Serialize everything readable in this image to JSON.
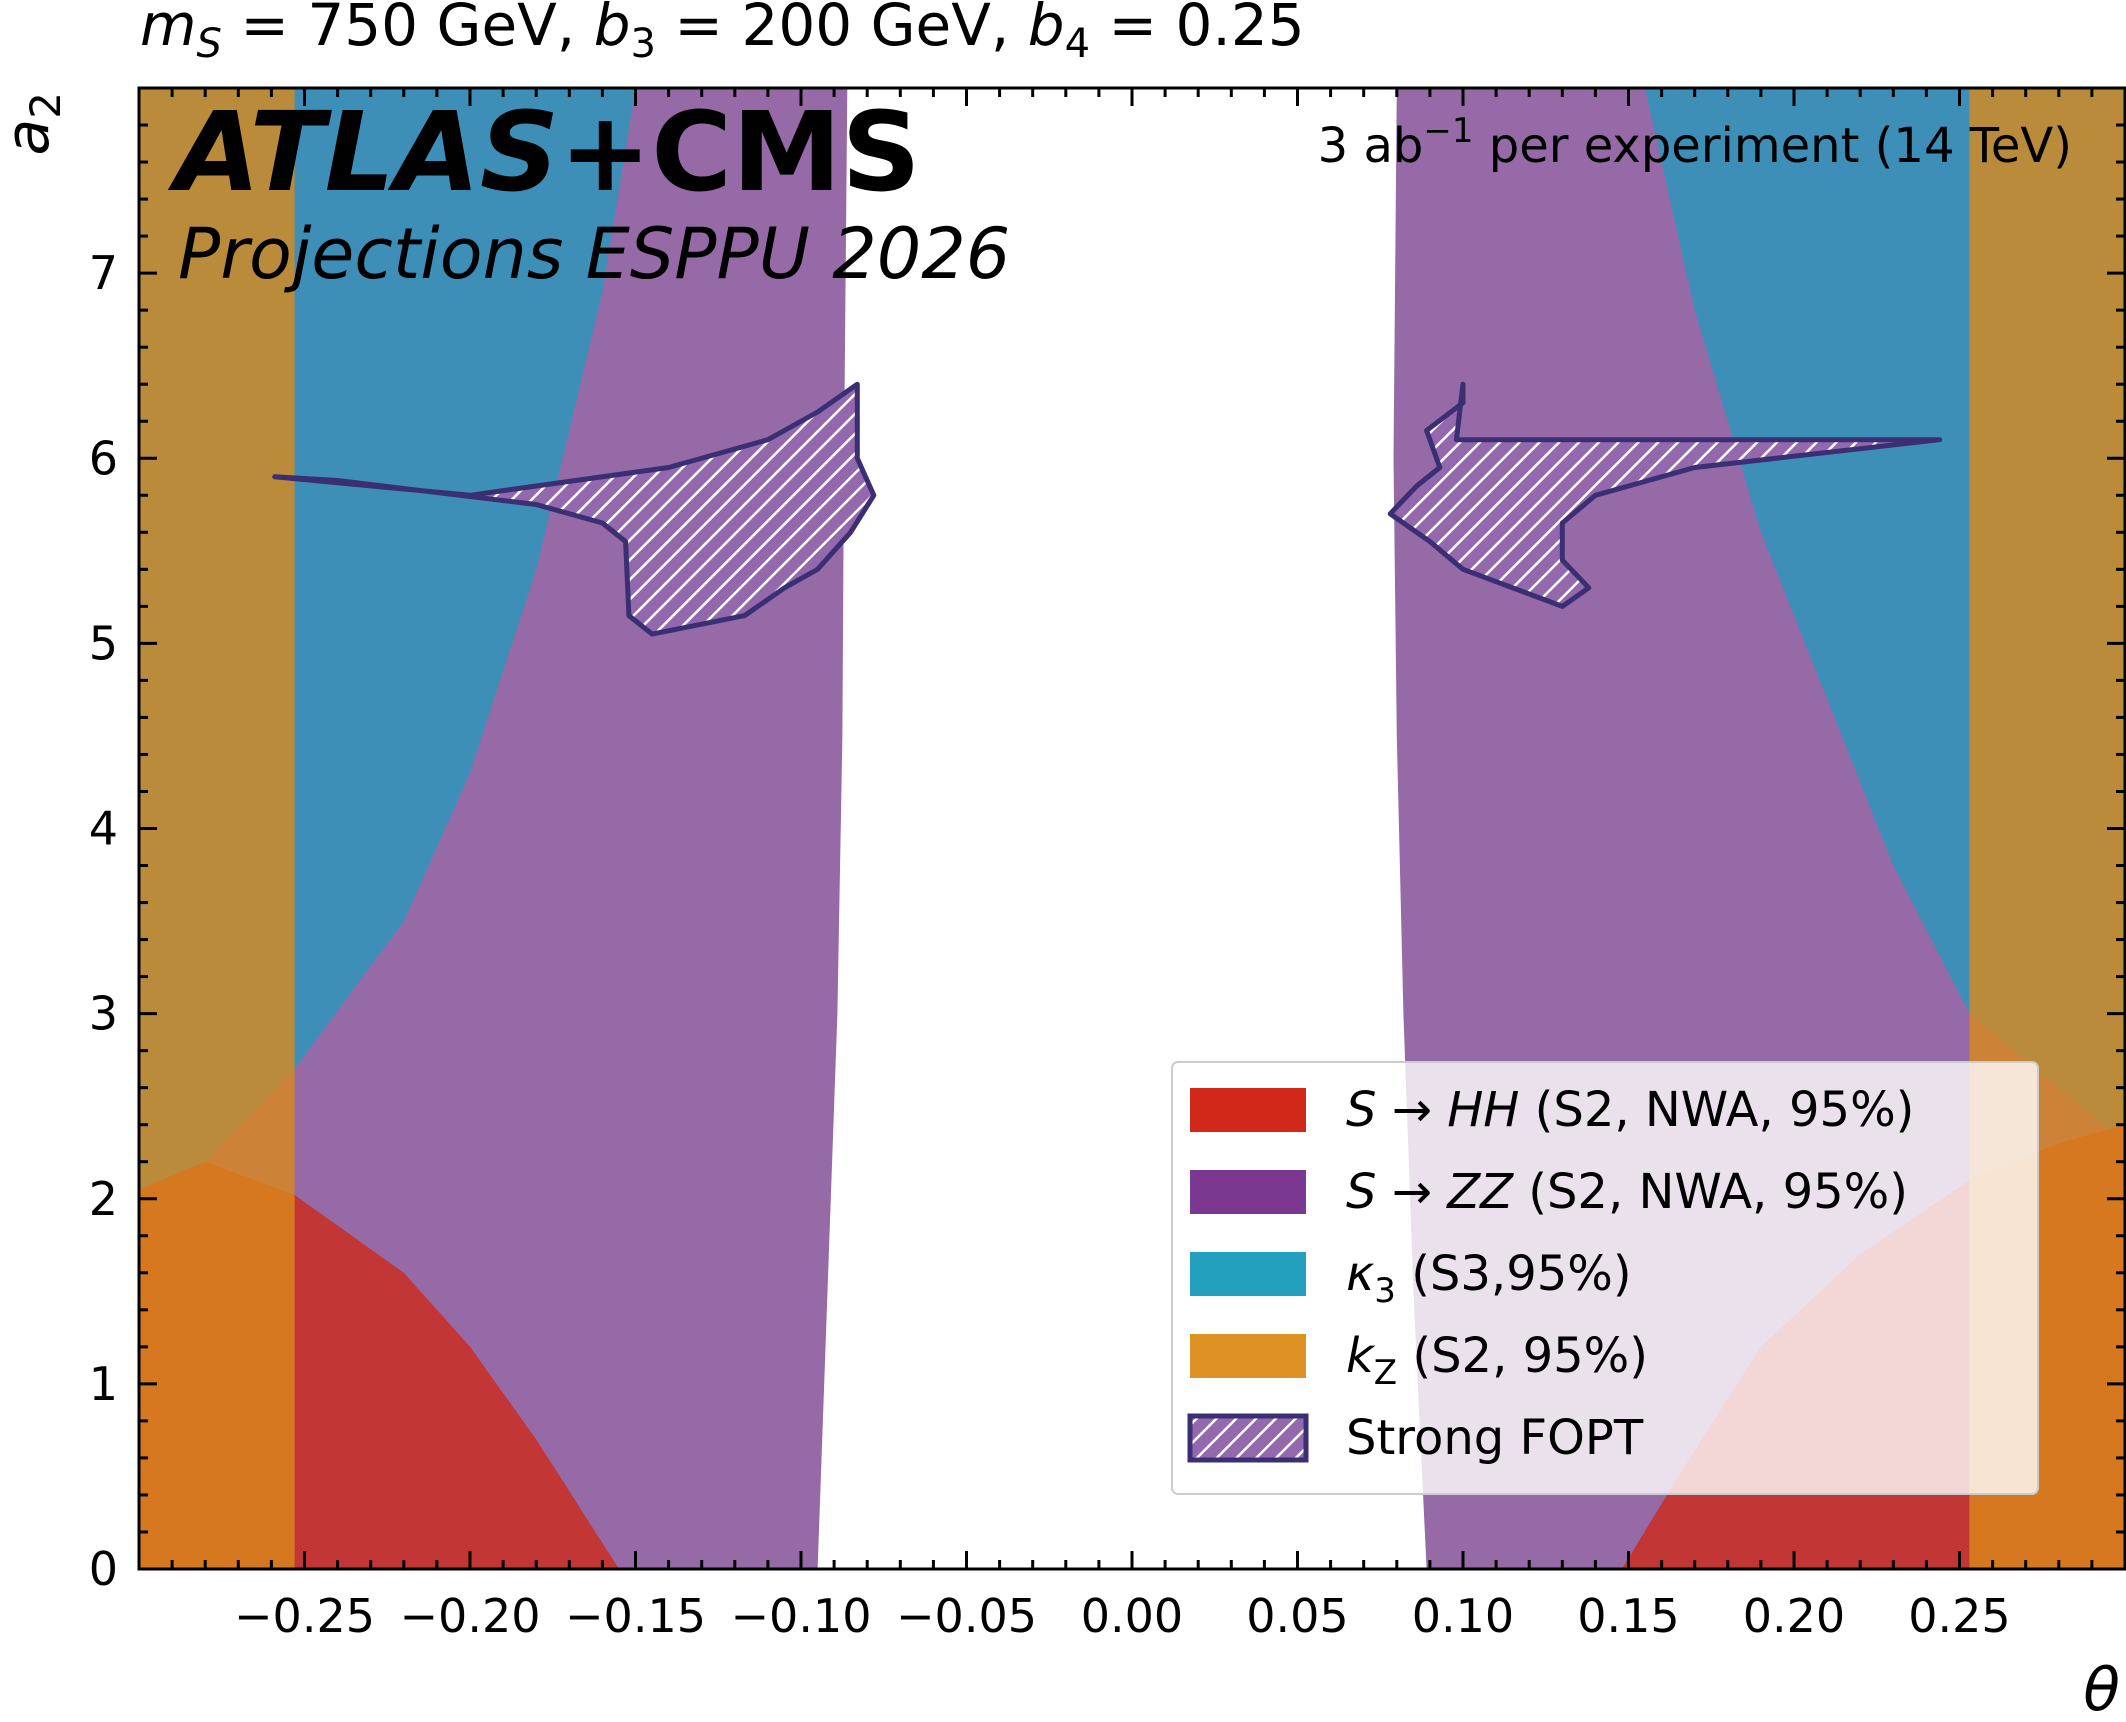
{
  "chart_data": {
    "type": "area",
    "title": "m_S = 750 GeV, b_3 = 200 GeV, b_4 = 0.25",
    "title_parts": {
      "m": "m",
      "m_sub": "S",
      "m_val": " = 750 GeV, ",
      "b3": "b",
      "b3_sub": "3",
      "b3_val": " = 200 GeV, ",
      "b4": "b",
      "b4_sub": "4",
      "b4_val": " = 0.25"
    },
    "experiment": {
      "bold": "ATLAS",
      "plus": "+CMS",
      "subtitle": "Projections ESPPU 2026"
    },
    "luminosity": {
      "value": "3 ab",
      "exp": "−1",
      "rest": "  per experiment (14 TeV)"
    },
    "xlabel": "θ",
    "ylabel": {
      "base": "a",
      "sub": "2"
    },
    "xlim": [
      -0.3,
      0.3
    ],
    "ylim": [
      0,
      8
    ],
    "xticks": [
      -0.25,
      -0.2,
      -0.15,
      -0.1,
      -0.05,
      0.0,
      0.05,
      0.1,
      0.15,
      0.2,
      0.25
    ],
    "xtick_labels": [
      "−0.25",
      "−0.20",
      "−0.15",
      "−0.10",
      "−0.05",
      "0.00",
      "0.05",
      "0.10",
      "0.15",
      "0.20",
      "0.25"
    ],
    "yticks": [
      0,
      1,
      2,
      3,
      4,
      5,
      6,
      7
    ],
    "ytick_labels": [
      "0",
      "1",
      "2",
      "3",
      "4",
      "5",
      "6",
      "7"
    ],
    "colors": {
      "HH": "#c0392b",
      "ZZ": "#8e5ca8",
      "kappa3": "#2a8bb8",
      "kZ": "#d9891c",
      "FOPT": "#3b2f73"
    },
    "legend": [
      {
        "key": "HH",
        "math": "S → HH",
        "text": "  (S2, NWA, 95%)",
        "swatch": "#d1281a"
      },
      {
        "key": "ZZ",
        "math": "S → ZZ",
        "text": "  (S2, NWA, 95%)",
        "swatch": "#7a3890"
      },
      {
        "key": "kappa3",
        "math": "κ",
        "math_sub": "3",
        "text": "  (S3,95%)",
        "swatch": "#24a0bf"
      },
      {
        "key": "kZ",
        "math": "k",
        "math_sub": "Z",
        "text": "  (S2, 95%)",
        "swatch": "#de9223"
      },
      {
        "key": "FOPT",
        "math": "",
        "text": "Strong FOPT",
        "swatch": "hatch"
      }
    ],
    "series": [
      {
        "name": "kZ excluded (left)",
        "x": [
          -0.3,
          -0.253,
          -0.253,
          -0.3
        ],
        "y": [
          0,
          0,
          8,
          8
        ]
      },
      {
        "name": "kZ excluded (right)",
        "x": [
          0.253,
          0.3,
          0.3,
          0.253
        ],
        "y": [
          0,
          0,
          8,
          8
        ]
      },
      {
        "name": "kappa3 boundary (left)",
        "x": [
          -0.3,
          -0.28,
          -0.253,
          -0.22,
          -0.2,
          -0.18,
          -0.16,
          -0.15
        ],
        "y": [
          2.0,
          2.2,
          2.7,
          3.5,
          4.3,
          5.4,
          6.9,
          8.0
        ]
      },
      {
        "name": "kappa3 boundary (right)",
        "x": [
          0.3,
          0.28,
          0.253,
          0.23,
          0.21,
          0.19,
          0.17,
          0.155
        ],
        "y": [
          2.3,
          2.6,
          3.0,
          3.8,
          4.7,
          5.6,
          6.8,
          8.0
        ]
      },
      {
        "name": "ZZ allowed boundary (left)",
        "x": [
          -0.095,
          -0.092,
          -0.089,
          -0.0875,
          -0.087,
          -0.086
        ],
        "y": [
          0,
          1.5,
          3.0,
          4.5,
          6.0,
          8.0
        ]
      },
      {
        "name": "ZZ allowed boundary (right)",
        "x": [
          0.089,
          0.085,
          0.082,
          0.08,
          0.079,
          0.08
        ],
        "y": [
          0,
          1.5,
          3.0,
          4.5,
          6.0,
          8.0
        ]
      },
      {
        "name": "HH excluded (left)",
        "x": [
          -0.3,
          -0.28,
          -0.253,
          -0.22,
          -0.2,
          -0.18,
          -0.155
        ],
        "y": [
          2.05,
          2.2,
          2.02,
          1.6,
          1.2,
          0.7,
          0
        ]
      },
      {
        "name": "HH excluded (right)",
        "x": [
          0.148,
          0.165,
          0.19,
          0.22,
          0.253,
          0.28,
          0.3
        ],
        "y": [
          0,
          0.5,
          1.2,
          1.7,
          2.1,
          2.3,
          2.4
        ]
      },
      {
        "name": "Strong FOPT (left)",
        "x": [
          -0.259,
          -0.2,
          -0.18,
          -0.14,
          -0.11,
          -0.095,
          -0.083,
          -0.083,
          -0.078,
          -0.085,
          -0.095,
          -0.105,
          -0.117,
          -0.145,
          -0.152,
          -0.153,
          -0.16,
          -0.18,
          -0.24
        ],
        "y": [
          5.9,
          5.8,
          5.85,
          5.95,
          6.1,
          6.25,
          6.4,
          6.0,
          5.8,
          5.6,
          5.4,
          5.3,
          5.15,
          5.05,
          5.15,
          5.55,
          5.65,
          5.75,
          5.88
        ]
      },
      {
        "name": "Strong FOPT (right)",
        "x": [
          0.078,
          0.086,
          0.093,
          0.089,
          0.1,
          0.1,
          0.098,
          0.15,
          0.244,
          0.17,
          0.14,
          0.13,
          0.13,
          0.138,
          0.13,
          0.1,
          0.09
        ],
        "y": [
          5.7,
          5.85,
          5.95,
          6.15,
          6.3,
          6.4,
          6.1,
          6.1,
          6.1,
          5.95,
          5.8,
          5.65,
          5.45,
          5.3,
          5.2,
          5.4,
          5.55
        ]
      }
    ]
  }
}
